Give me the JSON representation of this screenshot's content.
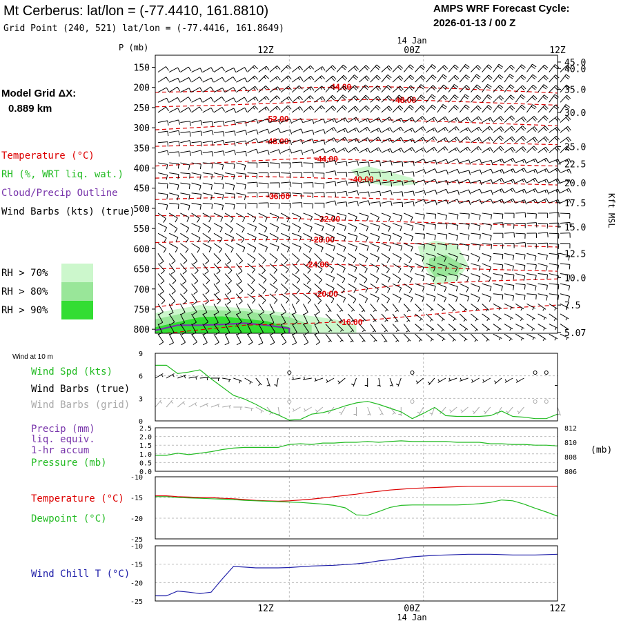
{
  "header": {
    "title": "Mt Cerberus:  lat/lon = (-77.4410, 161.8810)",
    "subtitle": "Grid Point (240, 521) lat/lon = (-77.4416, 161.8649)",
    "forecast_label": "AMPS WRF Forecast Cycle:",
    "forecast_cycle": "2026-01-13 / 00  Z",
    "model_grid_label": "Model Grid ΔX:",
    "model_grid_value": "0.889 km"
  },
  "legend": {
    "temperature": "Temperature (°C)",
    "rh": "RH (%, WRT liq. wat.)",
    "cloud": "Cloud/Precip Outline",
    "wind": "Wind Barbs (kts) (true)",
    "rh_levels": [
      {
        "label": "RH > 70%",
        "color": "#ccf7cc"
      },
      {
        "label": "RH > 80%",
        "color": "#99e699"
      },
      {
        "label": "RH > 90%",
        "color": "#33dd33"
      }
    ]
  },
  "time_axis": {
    "labels": [
      "12Z",
      "00Z",
      "12Z"
    ],
    "date_label": "14 Jan"
  },
  "colors": {
    "temperature": "#dd0000",
    "rh_high": "#33dd33",
    "cloud_outline": "#7733aa",
    "wind_speed": "#22bb22",
    "grid_barbs": "#aaaaaa",
    "pressure": "#22bb22",
    "precip": "#7733aa",
    "dewpoint": "#22bb22",
    "wind_chill": "#2222aa"
  },
  "chart_data": [
    {
      "type": "area",
      "name": "profile",
      "ylabel": "P (mb)",
      "ylabel_right": "Kft MSL",
      "pressure_ticks": [
        150,
        200,
        250,
        300,
        350,
        400,
        450,
        500,
        550,
        600,
        650,
        700,
        750,
        800
      ],
      "height_ticks": [
        "45.0",
        "40.0",
        "35.0",
        "30.0",
        "25.0",
        "22.5",
        "20.0",
        "17.5",
        "15.0",
        "12.5",
        "10.0",
        "7.5",
        "5.07"
      ],
      "height_pressures": [
        137,
        153,
        205,
        262,
        347,
        390,
        437,
        486,
        546,
        612,
        672,
        740,
        808
      ],
      "ylim": [
        120,
        810
      ],
      "xlim": [
        0,
        36
      ],
      "isotherms": [
        {
          "label": "-44.00",
          "x": [
            0,
            8,
            14,
            20,
            26,
            33,
            36
          ],
          "p": [
            212,
            208,
            200,
            198,
            202,
            210,
            214
          ],
          "label_x": 16.5,
          "label_p": 199
        },
        {
          "label": "-48.00",
          "x": [
            0,
            6,
            12,
            18,
            24,
            30,
            36
          ],
          "p": [
            248,
            244,
            238,
            230,
            232,
            238,
            244
          ],
          "label_x": 22.3,
          "label_p": 231
        },
        {
          "label": "-52.00",
          "x": [
            0,
            6,
            10,
            18,
            26,
            32,
            36
          ],
          "p": [
            305,
            296,
            280,
            278,
            285,
            291,
            295
          ],
          "label_x": 10.9,
          "label_p": 278
        },
        {
          "label": "-48.00",
          "x": [
            0,
            6,
            10,
            16,
            24,
            30,
            36
          ],
          "p": [
            346,
            342,
            335,
            330,
            332,
            338,
            342
          ],
          "label_x": 10.9,
          "label_p": 334
        },
        {
          "label": "-44.00",
          "x": [
            0,
            6,
            14,
            20,
            28,
            36
          ],
          "p": [
            395,
            386,
            375,
            382,
            390,
            395
          ],
          "label_x": 15.3,
          "label_p": 378
        },
        {
          "label": "-40.00",
          "x": [
            0,
            8,
            14,
            20,
            28,
            36
          ],
          "p": [
            425,
            420,
            424,
            430,
            436,
            442
          ],
          "label_x": 18.5,
          "label_p": 428
        },
        {
          "label": "-36.00",
          "x": [
            0,
            6,
            12,
            20,
            28,
            36
          ],
          "p": [
            478,
            473,
            468,
            476,
            483,
            486
          ],
          "label_x": 11.0,
          "label_p": 470
        },
        {
          "label": "-32.00",
          "x": [
            0,
            8,
            14,
            20,
            28,
            36
          ],
          "p": [
            518,
            520,
            527,
            532,
            538,
            545
          ],
          "label_x": 15.5,
          "label_p": 527
        },
        {
          "label": "-28.00",
          "x": [
            0,
            8,
            14,
            20,
            28,
            36
          ],
          "p": [
            585,
            578,
            577,
            585,
            590,
            596
          ],
          "label_x": 15.0,
          "label_p": 578
        },
        {
          "label": "-24.00",
          "x": [
            0,
            8,
            14,
            20,
            28,
            36
          ],
          "p": [
            650,
            645,
            638,
            642,
            650,
            656
          ],
          "label_x": 14.5,
          "label_p": 640
        },
        {
          "label": "-20.00",
          "x": [
            0,
            6,
            12,
            16,
            22,
            30,
            36
          ],
          "p": [
            745,
            725,
            712,
            710,
            690,
            680,
            675
          ],
          "label_x": 15.3,
          "label_p": 712
        },
        {
          "label": "-16.00",
          "x": [
            1,
            8,
            14,
            18,
            24,
            30,
            36
          ],
          "p": [
            810,
            790,
            785,
            780,
            765,
            750,
            740
          ],
          "label_x": 17.5,
          "label_p": 783
        }
      ],
      "rh_regions": [
        {
          "level": 70,
          "x": [
            0,
            4,
            8,
            12,
            16,
            18,
            18,
            0
          ],
          "p": [
            760,
            740,
            748,
            760,
            775,
            790,
            810,
            810
          ]
        },
        {
          "level": 80,
          "x": [
            0,
            4,
            8,
            12,
            14,
            14,
            0
          ],
          "p": [
            775,
            752,
            755,
            770,
            790,
            810,
            810
          ]
        },
        {
          "level": 90,
          "x": [
            0,
            4,
            6,
            10,
            12,
            12,
            0
          ],
          "p": [
            795,
            770,
            768,
            780,
            795,
            810,
            810
          ]
        },
        {
          "level": 70,
          "x": [
            17.5,
            19,
            21,
            23,
            23.5,
            21,
            18.5
          ],
          "p": [
            405,
            395,
            410,
            425,
            440,
            445,
            435
          ]
        },
        {
          "level": 70,
          "x": [
            23.5,
            25,
            27,
            28,
            27,
            25,
            24
          ],
          "p": [
            595,
            580,
            590,
            640,
            680,
            690,
            640
          ]
        },
        {
          "level": 80,
          "x": [
            24.5,
            26,
            27.5,
            27,
            25,
            24.5
          ],
          "p": [
            625,
            615,
            640,
            665,
            670,
            650
          ]
        }
      ],
      "cloud_outline": {
        "x": [
          0,
          2,
          4,
          6,
          8,
          10,
          12,
          12
        ],
        "p": [
          803,
          790,
          790,
          788,
          785,
          790,
          798,
          810
        ]
      },
      "barb_pressures": [
        150,
        175,
        200,
        225,
        250,
        275,
        300,
        325,
        350,
        375,
        400,
        425,
        450,
        475,
        500,
        525,
        550,
        575,
        600,
        625,
        650,
        675,
        700,
        725,
        750,
        775,
        800
      ],
      "barb_dir": [
        [
          60,
          50,
          45,
          40,
          40
        ],
        [
          80,
          70,
          60,
          55,
          50
        ],
        [
          100,
          90,
          80,
          70,
          65
        ],
        [
          120,
          115,
          110,
          100,
          90
        ],
        [
          140,
          130,
          120,
          110,
          100
        ],
        [
          150,
          150,
          140,
          130,
          120
        ]
      ],
      "barb_spd": [
        [
          12,
          15,
          18,
          20,
          22
        ],
        [
          10,
          12,
          14,
          16,
          18
        ],
        [
          10,
          10,
          12,
          12,
          14
        ],
        [
          8,
          10,
          10,
          12,
          12
        ],
        [
          8,
          8,
          10,
          10,
          10
        ],
        [
          10,
          8,
          6,
          5,
          5
        ]
      ]
    },
    {
      "type": "line",
      "name": "surface_wind",
      "title": "Wind at 10 m",
      "labels": [
        "Wind Spd (kts)",
        "Wind Barbs (true)",
        "Wind Barbs (grid)"
      ],
      "y_ticks": [
        0,
        3,
        6,
        9
      ],
      "ylim": [
        0,
        9
      ],
      "x": [
        0,
        1,
        2,
        3,
        4,
        5,
        6,
        7,
        8,
        9,
        10,
        11,
        12,
        13,
        14,
        15,
        16,
        17,
        18,
        19,
        20,
        21,
        22,
        23,
        24,
        25,
        26,
        27,
        28,
        29,
        30,
        31,
        32,
        33,
        34,
        35,
        36
      ],
      "speed": [
        7.4,
        7.4,
        6.3,
        6.5,
        6.8,
        5.6,
        4.5,
        3.4,
        2.9,
        2.2,
        1.4,
        0.8,
        0.1,
        0.2,
        0.9,
        1.1,
        1.5,
        2.0,
        2.4,
        2.6,
        2.2,
        1.7,
        1.2,
        0.3,
        1.0,
        1.8,
        0.7,
        0.6,
        0.6,
        0.6,
        0.7,
        1.3,
        0.6,
        0.5,
        0.3,
        0.3,
        0.9
      ],
      "barb_dir": [
        60,
        60,
        70,
        80,
        85,
        90,
        100,
        110,
        120,
        140,
        160,
        190,
        0,
        260,
        260,
        250,
        240,
        230,
        200,
        180,
        170,
        160,
        200,
        0,
        230,
        220,
        240,
        250,
        250,
        240,
        240,
        230,
        240,
        240,
        0,
        0,
        180
      ],
      "barb_calm": [
        false,
        false,
        false,
        false,
        false,
        false,
        false,
        false,
        false,
        false,
        false,
        false,
        true,
        false,
        false,
        false,
        false,
        false,
        false,
        false,
        false,
        false,
        false,
        true,
        false,
        false,
        false,
        false,
        false,
        false,
        false,
        false,
        false,
        false,
        true,
        true,
        false
      ]
    },
    {
      "type": "line",
      "name": "precip_pressure",
      "labels": [
        "Precip (mm)",
        "liq. equiv.",
        "1-hr accum",
        "Pressure (mb)"
      ],
      "precip_ticks": [
        "0.0",
        "0.5",
        "1.0",
        "1.5",
        "2.0",
        "2.5"
      ],
      "pressure_ticks": [
        806,
        808,
        810,
        812
      ],
      "right_label": "(mb)",
      "ylim": [
        806,
        812
      ],
      "x": [
        0,
        1,
        2,
        3,
        4,
        5,
        6,
        7,
        8,
        9,
        10,
        11,
        12,
        13,
        14,
        15,
        16,
        17,
        18,
        19,
        20,
        21,
        22,
        23,
        24,
        25,
        26,
        27,
        28,
        29,
        30,
        31,
        32,
        33,
        34,
        35,
        36
      ],
      "pressure": [
        808.2,
        808.2,
        808.5,
        808.3,
        808.5,
        808.7,
        809.0,
        809.2,
        809.3,
        809.3,
        809.3,
        809.3,
        809.7,
        809.8,
        809.7,
        809.9,
        809.9,
        810.0,
        810.0,
        810.1,
        810.0,
        810.1,
        810.2,
        810.1,
        810.1,
        810.1,
        810.1,
        810.0,
        810.0,
        810.0,
        809.8,
        809.8,
        809.7,
        809.7,
        809.6,
        809.6,
        809.5
      ]
    },
    {
      "type": "line",
      "name": "temperature",
      "labels": [
        "Temperature (°C)",
        "Dewpoint (°C)"
      ],
      "y_ticks": [
        -25,
        -20,
        -15,
        -10
      ],
      "ylim": [
        -25,
        -10
      ],
      "x": [
        0,
        1,
        2,
        3,
        4,
        5,
        6,
        7,
        8,
        9,
        10,
        11,
        12,
        13,
        14,
        15,
        16,
        17,
        18,
        19,
        20,
        21,
        22,
        23,
        24,
        25,
        26,
        27,
        28,
        29,
        30,
        31,
        32,
        33,
        34,
        35,
        36
      ],
      "temperature": [
        -14.6,
        -14.6,
        -14.8,
        -14.9,
        -15.0,
        -15.0,
        -15.2,
        -15.3,
        -15.5,
        -15.7,
        -15.8,
        -15.9,
        -15.8,
        -15.6,
        -15.4,
        -15.1,
        -14.8,
        -14.5,
        -14.2,
        -13.8,
        -13.5,
        -13.2,
        -13.0,
        -12.8,
        -12.7,
        -12.6,
        -12.5,
        -12.4,
        -12.3,
        -12.3,
        -12.3,
        -12.3,
        -12.3,
        -12.3,
        -12.3,
        -12.3,
        -12.3
      ],
      "dewpoint": [
        -14.8,
        -14.8,
        -15.0,
        -15.1,
        -15.2,
        -15.3,
        -15.4,
        -15.5,
        -15.7,
        -15.8,
        -15.9,
        -16.0,
        -16.1,
        -16.2,
        -16.4,
        -16.6,
        -16.9,
        -17.5,
        -19.2,
        -19.3,
        -18.4,
        -17.4,
        -16.9,
        -16.8,
        -16.8,
        -16.8,
        -16.8,
        -16.8,
        -16.7,
        -16.5,
        -16.2,
        -15.6,
        -15.8,
        -16.6,
        -17.6,
        -18.5,
        -19.5
      ]
    },
    {
      "type": "line",
      "name": "wind_chill",
      "labels": [
        "Wind Chill T (°C)"
      ],
      "y_ticks": [
        -25,
        -20,
        -15,
        -10
      ],
      "ylim": [
        -25,
        -10
      ],
      "x": [
        0,
        1,
        2,
        3,
        4,
        5,
        6,
        7,
        8,
        9,
        10,
        11,
        12,
        13,
        14,
        15,
        16,
        17,
        18,
        19,
        20,
        21,
        22,
        23,
        24,
        25,
        26,
        27,
        28,
        29,
        30,
        31,
        32,
        33,
        34,
        35,
        36
      ],
      "wind_chill": [
        -23.6,
        -23.6,
        -22.3,
        -22.6,
        -23.0,
        -22.6,
        -19.0,
        -15.6,
        -15.8,
        -16.0,
        -16.0,
        -16.0,
        -15.9,
        -15.7,
        -15.5,
        -15.4,
        -15.3,
        -15.1,
        -14.9,
        -14.6,
        -14.1,
        -13.8,
        -13.4,
        -13.0,
        -12.8,
        -12.6,
        -12.5,
        -12.4,
        -12.3,
        -12.3,
        -12.3,
        -12.4,
        -12.5,
        -12.5,
        -12.5,
        -12.4,
        -12.3
      ]
    }
  ]
}
